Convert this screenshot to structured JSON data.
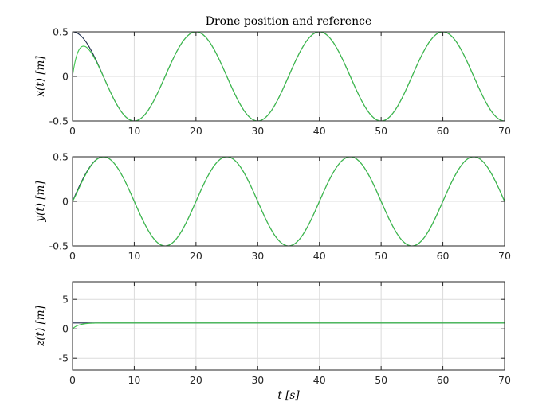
{
  "figure": {
    "title": "Drone position and reference",
    "xlabel": "t [s]"
  },
  "chart_data": [
    {
      "type": "line",
      "title": "Drone position and reference",
      "ylabel": "x(t) [m]",
      "xlim": [
        0,
        70
      ],
      "ylim": [
        -0.5,
        0.5
      ],
      "xticks": [
        0,
        10,
        20,
        30,
        40,
        50,
        60,
        70
      ],
      "yticks": [
        -0.5,
        0,
        0.5
      ],
      "ytick_labels": [
        "-0.5",
        "0",
        "0.5"
      ],
      "grid": true,
      "series": [
        {
          "role": "reference",
          "color": "#1f2d4d",
          "formula": "0.5*cos(2*pi*t/20)"
        },
        {
          "role": "position",
          "color": "#3cc44a",
          "formula": "0.5*cos(2*pi*t/20) - 0.5*exp(-t)"
        }
      ]
    },
    {
      "type": "line",
      "ylabel": "y(t) [m]",
      "xlim": [
        0,
        70
      ],
      "ylim": [
        -0.5,
        0.5
      ],
      "xticks": [
        0,
        10,
        20,
        30,
        40,
        50,
        60,
        70
      ],
      "yticks": [
        -0.5,
        0,
        0.5
      ],
      "ytick_labels": [
        "-0.5",
        "0",
        "0.5"
      ],
      "grid": true,
      "series": [
        {
          "role": "reference",
          "color": "#1f2d4d",
          "formula": "0.5*sin(2*pi*t/20)"
        },
        {
          "role": "position",
          "color": "#3cc44a",
          "formula": "0.5*sin(2*pi*t/20) - 0.04*t*exp(-t)"
        }
      ]
    },
    {
      "type": "line",
      "ylabel": "z(t) [m]",
      "xlabel": "t [s]",
      "xlim": [
        0,
        70
      ],
      "ylim": [
        -7,
        8
      ],
      "xticks": [
        0,
        10,
        20,
        30,
        40,
        50,
        60,
        70
      ],
      "yticks": [
        -5,
        0,
        5
      ],
      "ytick_labels": [
        "-5",
        "0",
        "5"
      ],
      "grid": true,
      "series": [
        {
          "role": "reference",
          "color": "#1f2d4d",
          "formula": "1"
        },
        {
          "role": "position",
          "color": "#3cc44a",
          "formula": "1 - exp(-t)"
        }
      ]
    }
  ]
}
